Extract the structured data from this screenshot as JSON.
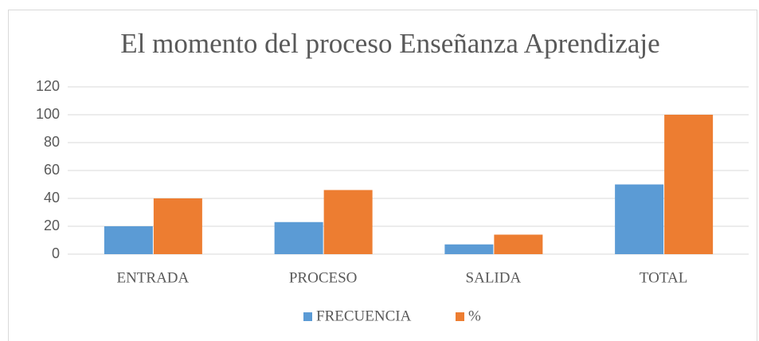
{
  "chart_data": {
    "type": "bar",
    "title": "El momento del proceso Enseñanza Aprendizaje",
    "categories": [
      "ENTRADA",
      "PROCESO",
      "SALIDA",
      "TOTAL"
    ],
    "series": [
      {
        "name": "FRECUENCIA",
        "color": "#5b9bd5",
        "values": [
          20,
          23,
          7,
          50
        ]
      },
      {
        "name": "%",
        "color": "#ed7d31",
        "values": [
          40,
          46,
          14,
          100
        ]
      }
    ],
    "ylim": [
      0,
      120
    ],
    "yticks": [
      0,
      20,
      40,
      60,
      80,
      100,
      120
    ],
    "grid": true,
    "legend": "bottom"
  }
}
